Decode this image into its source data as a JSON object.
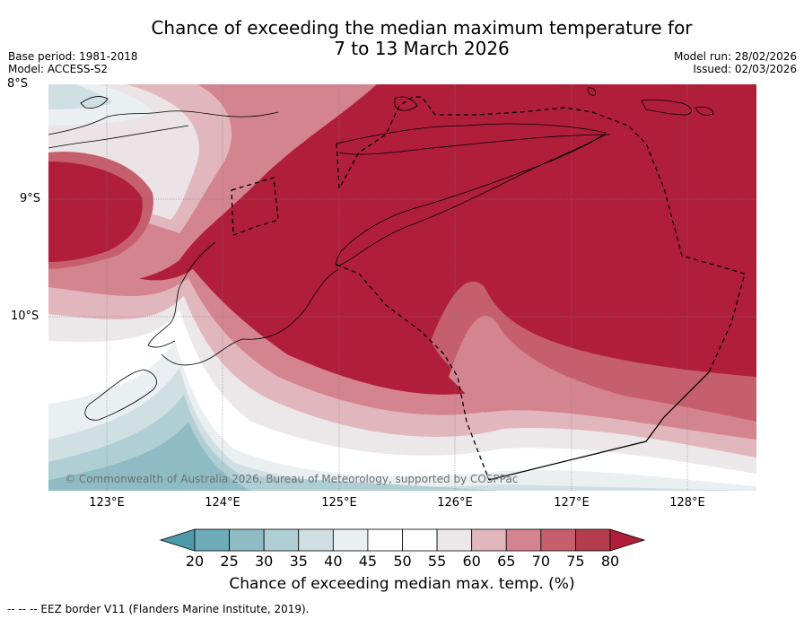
{
  "title_line1": "Chance of exceeding the median maximum temperature for",
  "title_line2": "7 to 13 March 2026",
  "meta_left": [
    "Base period: 1981-2018",
    "Model: ACCESS-S2"
  ],
  "meta_right": [
    "Model run: 28/02/2026",
    "Issued: 02/03/2026"
  ],
  "lat_labels": [
    "8°S",
    "9°S",
    "10°S"
  ],
  "lon_labels": [
    "123°E",
    "124°E",
    "125°E",
    "126°E",
    "127°E",
    "128°E"
  ],
  "copyright": "© Commonwealth of Australia 2026, Bureau of Meteorology, supported by COSPPac",
  "colorbar": {
    "ticks": [
      "20",
      "25",
      "30",
      "35",
      "40",
      "45",
      "50",
      "55",
      "60",
      "65",
      "70",
      "75",
      "80"
    ],
    "colors": [
      "#4d9aa8",
      "#6eacb7",
      "#8fbcc4",
      "#b0cfd4",
      "#cfdfe2",
      "#eaf0f2",
      "#ffffff",
      "#ffffff",
      "#ece8ea",
      "#e2b6bd",
      "#d4848f",
      "#c65f6c",
      "#b33c4d",
      "#b01e3a"
    ],
    "label": "Chance of exceeding median max. temp. (%)"
  },
  "footnote": "--  --  -- EEZ border V11 (Flanders Marine Institute, 2019)."
}
